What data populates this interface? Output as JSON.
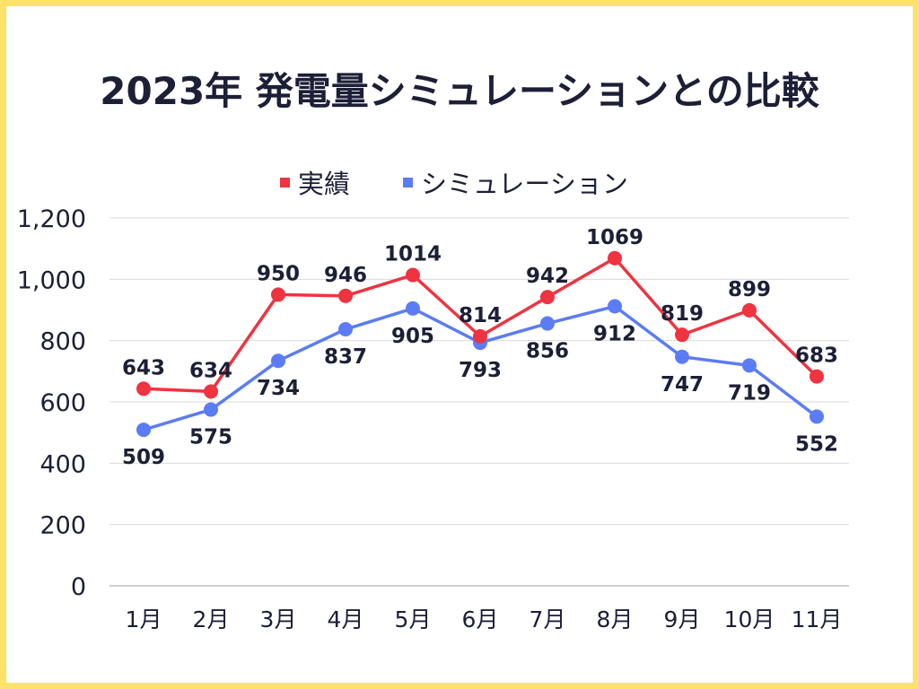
{
  "chart_data": {
    "type": "line",
    "title": "2023年 発電量シミュレーションとの比較",
    "categories": [
      "1月",
      "2月",
      "3月",
      "4月",
      "5月",
      "6月",
      "7月",
      "8月",
      "9月",
      "10月",
      "11月"
    ],
    "series": [
      {
        "name": "実績",
        "color": "#ef3340",
        "values": [
          643,
          634,
          950,
          946,
          1014,
          814,
          942,
          1069,
          819,
          899,
          683
        ]
      },
      {
        "name": "シミュレーション",
        "color": "#5b7cf5",
        "values": [
          509,
          575,
          734,
          837,
          905,
          793,
          856,
          912,
          747,
          719,
          552
        ]
      }
    ],
    "ylim": [
      0,
      1200
    ],
    "yticks": [
      "0",
      "200",
      "400",
      "600",
      "800",
      "1,000",
      "1,200"
    ],
    "xlabel": "",
    "ylabel": "",
    "grid": true,
    "legend": "top",
    "data_labels": true,
    "frame_color": "#fde26a"
  }
}
